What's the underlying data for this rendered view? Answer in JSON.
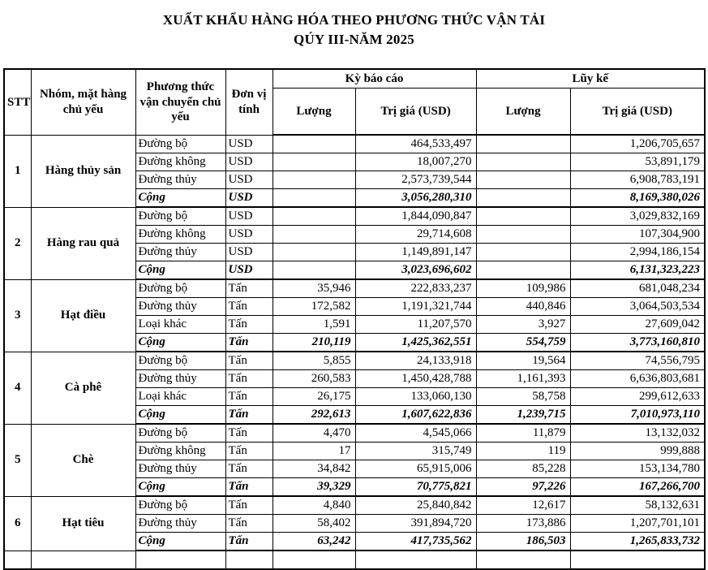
{
  "title": {
    "line1": "XUẤT KHẨU HÀNG HÓA THEO PHƯƠNG THỨC VẬN TẢI",
    "line2": "QÚY III-NĂM 2025"
  },
  "table": {
    "headers": {
      "stt": "STT",
      "group": "Nhóm, mặt hàng chủ yếu",
      "method": "Phương thức vận chuyển chủ yếu",
      "unit": "Đơn vị tính",
      "period": "Kỳ báo cáo",
      "cumulative": "Lũy kế",
      "qty": "Lượng",
      "value": "Trị giá (USD)"
    },
    "groups": [
      {
        "stt": "1",
        "name": "Hàng thủy sản",
        "rows": [
          {
            "method": "Đường bộ",
            "unit": "USD",
            "q1": "",
            "v1": "464,533,497",
            "q2": "",
            "v2": "1,206,705,657",
            "total": false
          },
          {
            "method": "Đường không",
            "unit": "USD",
            "q1": "",
            "v1": "18,007,270",
            "q2": "",
            "v2": "53,891,179",
            "total": false
          },
          {
            "method": "Đường thủy",
            "unit": "USD",
            "q1": "",
            "v1": "2,573,739,544",
            "q2": "",
            "v2": "6,908,783,191",
            "total": false
          },
          {
            "method": "Cộng",
            "unit": "USD",
            "q1": "",
            "v1": "3,056,280,310",
            "q2": "",
            "v2": "8,169,380,026",
            "total": true
          }
        ]
      },
      {
        "stt": "2",
        "name": "Hàng rau quả",
        "rows": [
          {
            "method": "Đường bộ",
            "unit": "USD",
            "q1": "",
            "v1": "1,844,090,847",
            "q2": "",
            "v2": "3,029,832,169",
            "total": false
          },
          {
            "method": "Đường không",
            "unit": "USD",
            "q1": "",
            "v1": "29,714,608",
            "q2": "",
            "v2": "107,304,900",
            "total": false
          },
          {
            "method": "Đường thủy",
            "unit": "USD",
            "q1": "",
            "v1": "1,149,891,147",
            "q2": "",
            "v2": "2,994,186,154",
            "total": false
          },
          {
            "method": "Cộng",
            "unit": "USD",
            "q1": "",
            "v1": "3,023,696,602",
            "q2": "",
            "v2": "6,131,323,223",
            "total": true
          }
        ]
      },
      {
        "stt": "3",
        "name": "Hạt điều",
        "rows": [
          {
            "method": "Đường bộ",
            "unit": "Tấn",
            "q1": "35,946",
            "v1": "222,833,237",
            "q2": "109,986",
            "v2": "681,048,234",
            "total": false
          },
          {
            "method": "Đường thủy",
            "unit": "Tấn",
            "q1": "172,582",
            "v1": "1,191,321,744",
            "q2": "440,846",
            "v2": "3,064,503,534",
            "total": false
          },
          {
            "method": "Loại khác",
            "unit": "Tấn",
            "q1": "1,591",
            "v1": "11,207,570",
            "q2": "3,927",
            "v2": "27,609,042",
            "total": false
          },
          {
            "method": "Cộng",
            "unit": "Tấn",
            "q1": "210,119",
            "v1": "1,425,362,551",
            "q2": "554,759",
            "v2": "3,773,160,810",
            "total": true
          }
        ]
      },
      {
        "stt": "4",
        "name": "Cà phê",
        "rows": [
          {
            "method": "Đường bộ",
            "unit": "Tấn",
            "q1": "5,855",
            "v1": "24,133,918",
            "q2": "19,564",
            "v2": "74,556,795",
            "total": false
          },
          {
            "method": "Đường thủy",
            "unit": "Tấn",
            "q1": "260,583",
            "v1": "1,450,428,788",
            "q2": "1,161,393",
            "v2": "6,636,803,681",
            "total": false
          },
          {
            "method": "Loại khác",
            "unit": "Tấn",
            "q1": "26,175",
            "v1": "133,060,130",
            "q2": "58,758",
            "v2": "299,612,633",
            "total": false
          },
          {
            "method": "Cộng",
            "unit": "Tấn",
            "q1": "292,613",
            "v1": "1,607,622,836",
            "q2": "1,239,715",
            "v2": "7,010,973,110",
            "total": true
          }
        ]
      },
      {
        "stt": "5",
        "name": "Chè",
        "rows": [
          {
            "method": "Đường bộ",
            "unit": "Tấn",
            "q1": "4,470",
            "v1": "4,545,066",
            "q2": "11,879",
            "v2": "13,132,032",
            "total": false
          },
          {
            "method": "Đường không",
            "unit": "Tấn",
            "q1": "17",
            "v1": "315,749",
            "q2": "119",
            "v2": "999,888",
            "total": false
          },
          {
            "method": "Đường thủy",
            "unit": "Tấn",
            "q1": "34,842",
            "v1": "65,915,006",
            "q2": "85,228",
            "v2": "153,134,780",
            "total": false
          },
          {
            "method": "Cộng",
            "unit": "Tấn",
            "q1": "39,329",
            "v1": "70,775,821",
            "q2": "97,226",
            "v2": "167,266,700",
            "total": true
          }
        ]
      },
      {
        "stt": "6",
        "name": "Hạt tiêu",
        "rows": [
          {
            "method": "Đường bộ",
            "unit": "Tấn",
            "q1": "4,840",
            "v1": "25,840,842",
            "q2": "12,617",
            "v2": "58,132,631",
            "total": false
          },
          {
            "method": "Đường thủy",
            "unit": "Tấn",
            "q1": "58,402",
            "v1": "391,894,720",
            "q2": "173,886",
            "v2": "1,207,701,101",
            "total": false
          },
          {
            "method": "Cộng",
            "unit": "Tấn",
            "q1": "63,242",
            "v1": "417,735,562",
            "q2": "186,503",
            "v2": "1,265,833,732",
            "total": true
          }
        ]
      }
    ]
  }
}
